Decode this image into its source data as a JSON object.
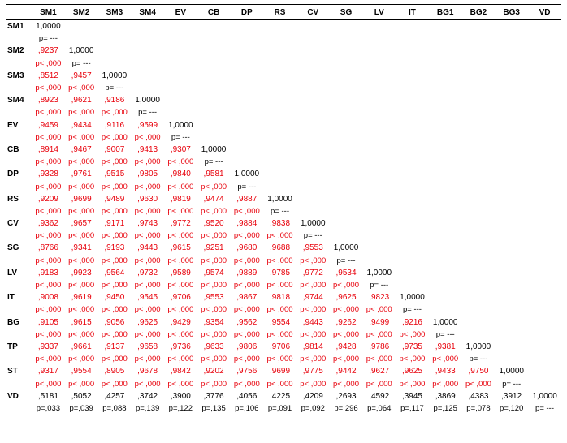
{
  "table": {
    "columns": [
      "SM1",
      "SM2",
      "SM3",
      "SM4",
      "EV",
      "CB",
      "DP",
      "RS",
      "CV",
      "SG",
      "LV",
      "IT",
      "BG1",
      "BG2",
      "BG3",
      "VD"
    ],
    "rows": [
      {
        "label": "SM1",
        "r": [
          "1,0000"
        ],
        "p": [
          "p= ---"
        ]
      },
      {
        "label": "SM2",
        "r": [
          ",9237",
          "1,0000"
        ],
        "p": [
          "p< ,000",
          "p= ---"
        ]
      },
      {
        "label": "SM3",
        "r": [
          ",8512",
          ",9457",
          "1,0000"
        ],
        "p": [
          "p< ,000",
          "p< ,000",
          "p= ---"
        ]
      },
      {
        "label": "SM4",
        "r": [
          ",8923",
          ",9621",
          ",9186",
          "1,0000"
        ],
        "p": [
          "p< ,000",
          "p< ,000",
          "p< ,000",
          "p= ---"
        ]
      },
      {
        "label": "EV",
        "r": [
          ",9459",
          ",9434",
          ",9116",
          ",9599",
          "1,0000"
        ],
        "p": [
          "p< ,000",
          "p< ,000",
          "p< ,000",
          "p< ,000",
          "p= ---"
        ]
      },
      {
        "label": "CB",
        "r": [
          ",8914",
          ",9467",
          ",9007",
          ",9413",
          ",9307",
          "1,0000"
        ],
        "p": [
          "p< ,000",
          "p< ,000",
          "p< ,000",
          "p< ,000",
          "p< ,000",
          "p= ---"
        ]
      },
      {
        "label": "DP",
        "r": [
          ",9328",
          ",9761",
          ",9515",
          ",9805",
          ",9840",
          ",9581",
          "1,0000"
        ],
        "p": [
          "p< ,000",
          "p< ,000",
          "p< ,000",
          "p< ,000",
          "p< ,000",
          "p< ,000",
          "p= ---"
        ]
      },
      {
        "label": "RS",
        "r": [
          ",9209",
          ",9699",
          ",9489",
          ",9630",
          ",9819",
          ",9474",
          ",9887",
          "1,0000"
        ],
        "p": [
          "p< ,000",
          "p< ,000",
          "p< ,000",
          "p< ,000",
          "p< ,000",
          "p< ,000",
          "p< ,000",
          "p= ---"
        ]
      },
      {
        "label": "CV",
        "r": [
          ",9362",
          ",9657",
          ",9171",
          ",9743",
          ",9772",
          ",9520",
          ",9884",
          ",9838",
          "1,0000"
        ],
        "p": [
          "p< ,000",
          "p< ,000",
          "p< ,000",
          "p< ,000",
          "p< ,000",
          "p< ,000",
          "p< ,000",
          "p< ,000",
          "p= ---"
        ]
      },
      {
        "label": "SG",
        "r": [
          ",8766",
          ",9341",
          ",9193",
          ",9443",
          ",9615",
          ",9251",
          ",9680",
          ",9688",
          ",9553",
          "1,0000"
        ],
        "p": [
          "p< ,000",
          "p< ,000",
          "p< ,000",
          "p< ,000",
          "p< ,000",
          "p< ,000",
          "p< ,000",
          "p< ,000",
          "p< ,000",
          "p= ---"
        ]
      },
      {
        "label": "LV",
        "r": [
          ",9183",
          ",9923",
          ",9564",
          ",9732",
          ",9589",
          ",9574",
          ",9889",
          ",9785",
          ",9772",
          ",9534",
          "1,0000"
        ],
        "p": [
          "p< ,000",
          "p< ,000",
          "p< ,000",
          "p< ,000",
          "p< ,000",
          "p< ,000",
          "p< ,000",
          "p< ,000",
          "p< ,000",
          "p< ,000",
          "p= ---"
        ]
      },
      {
        "label": "IT",
        "r": [
          ",9008",
          ",9619",
          ",9450",
          ",9545",
          ",9706",
          ",9553",
          ",9867",
          ",9818",
          ",9744",
          ",9625",
          ",9823",
          "1,0000"
        ],
        "p": [
          "p< ,000",
          "p< ,000",
          "p< ,000",
          "p< ,000",
          "p< ,000",
          "p< ,000",
          "p< ,000",
          "p< ,000",
          "p< ,000",
          "p< ,000",
          "p< ,000",
          "p= ---"
        ]
      },
      {
        "label": "BG",
        "r": [
          ",9105",
          ",9615",
          ",9056",
          ",9625",
          ",9429",
          ",9354",
          ",9562",
          ",9554",
          ",9443",
          ",9262",
          ",9499",
          ",9216",
          "1,0000"
        ],
        "p": [
          "p< ,000",
          "p< ,000",
          "p< ,000",
          "p< ,000",
          "p< ,000",
          "p< ,000",
          "p< ,000",
          "p< ,000",
          "p< ,000",
          "p< ,000",
          "p< ,000",
          "p< ,000",
          "p= ---"
        ]
      },
      {
        "label": "TP",
        "r": [
          ",9337",
          ",9661",
          ",9137",
          ",9658",
          ",9736",
          ",9633",
          ",9806",
          ",9706",
          ",9814",
          ",9428",
          ",9786",
          ",9735",
          ",9381",
          "1,0000"
        ],
        "p": [
          "p< ,000",
          "p< ,000",
          "p< ,000",
          "p< ,000",
          "p< ,000",
          "p< ,000",
          "p< ,000",
          "p< ,000",
          "p< ,000",
          "p< ,000",
          "p< ,000",
          "p< ,000",
          "p< ,000",
          "p= ---"
        ]
      },
      {
        "label": "ST",
        "r": [
          ",9317",
          ",9554",
          ",8905",
          ",9678",
          ",9842",
          ",9202",
          ",9756",
          ",9699",
          ",9775",
          ",9442",
          ",9627",
          ",9625",
          ",9433",
          ",9750",
          "1,0000"
        ],
        "p": [
          "p< ,000",
          "p< ,000",
          "p< ,000",
          "p< ,000",
          "p< ,000",
          "p< ,000",
          "p< ,000",
          "p< ,000",
          "p< ,000",
          "p< ,000",
          "p< ,000",
          "p< ,000",
          "p< ,000",
          "p< ,000",
          "p= ---"
        ]
      },
      {
        "label": "VD",
        "r": [
          ",5181",
          ",5052",
          ",4257",
          ",3742",
          ",3900",
          ",3776",
          ",4056",
          ",4225",
          ",4209",
          ",2693",
          ",4592",
          ",3945",
          ",3869",
          ",4383",
          ",3912",
          "1,0000"
        ],
        "p": [
          "p=,033",
          "p=,039",
          "p=,088",
          "p=,139",
          "p=,122",
          "p=,135",
          "p=,106",
          "p=,091",
          "p=,092",
          "p=,296",
          "p=,064",
          "p=,117",
          "p=,125",
          "p=,078",
          "p=,120",
          "p= ---"
        ]
      }
    ]
  },
  "colors": {
    "significant": "#e8000b",
    "default": "#000000"
  }
}
